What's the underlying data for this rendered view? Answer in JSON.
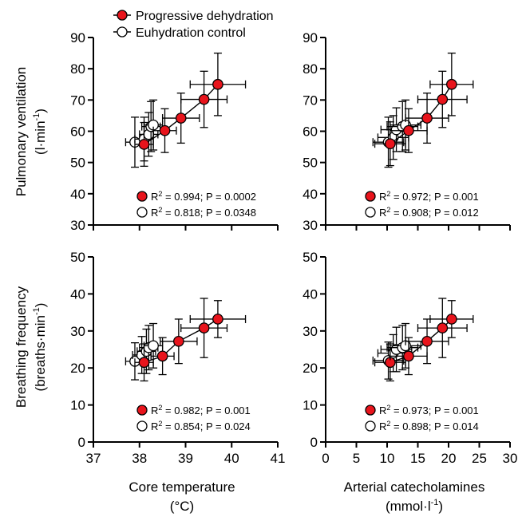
{
  "legend": {
    "entries": [
      {
        "label": "Progressive dehydration",
        "fill": "#e8141c"
      },
      {
        "label": "Euhydration control",
        "fill": "#ffffff"
      }
    ]
  },
  "row_labels": [
    {
      "line1": "Pulmonary ventilation",
      "line2": "(l·min",
      "sup": "-1",
      "tail": ")"
    },
    {
      "line1": "Breathing frequency",
      "line2": "(breaths·min",
      "sup": "-1",
      "tail": ")"
    }
  ],
  "col_labels": [
    {
      "line1": "Core temperature",
      "line2": "(°C)"
    },
    {
      "line1": "Arterial catecholamines",
      "line2": "(mmol·l",
      "sup": "-1",
      "tail": ")"
    }
  ],
  "chart_data": [
    {
      "type": "scatter",
      "panel": "top-left",
      "xlim": [
        37,
        41
      ],
      "xticks": [
        37,
        38,
        39,
        40,
        41
      ],
      "xticks_shown": false,
      "ylim": [
        30,
        90
      ],
      "yticks": [
        30,
        40,
        50,
        60,
        70,
        80,
        90
      ],
      "series": [
        {
          "name": "Progressive dehydration",
          "fill": "#e8141c",
          "line": true,
          "points": [
            {
              "x": 38.1,
              "y": 55.8,
              "xerr": 0.2,
              "yerr": 7
            },
            {
              "x": 38.55,
              "y": 60.2,
              "xerr": 0.25,
              "yerr": 7
            },
            {
              "x": 38.9,
              "y": 64.2,
              "xerr": 0.4,
              "yerr": 8
            },
            {
              "x": 39.4,
              "y": 70.2,
              "xerr": 0.5,
              "yerr": 9
            },
            {
              "x": 39.7,
              "y": 75.0,
              "xerr": 0.6,
              "yerr": 10
            }
          ]
        },
        {
          "name": "Euhydration control",
          "fill": "#ffffff",
          "line": true,
          "points": [
            {
              "x": 37.9,
              "y": 56.5,
              "xerr": 0.2,
              "yerr": 8
            },
            {
              "x": 38.1,
              "y": 57.5,
              "xerr": 0.2,
              "yerr": 7
            },
            {
              "x": 38.2,
              "y": 59.0,
              "xerr": 0.2,
              "yerr": 7
            },
            {
              "x": 38.25,
              "y": 61.5,
              "xerr": 0.2,
              "yerr": 8
            },
            {
              "x": 38.3,
              "y": 62.0,
              "xerr": 0.2,
              "yerr": 8
            }
          ]
        }
      ],
      "stats": [
        {
          "pre": "R",
          "sup": "2",
          "post": " = 0.994; P = 0.0002",
          "fill": "#e8141c"
        },
        {
          "pre": "R",
          "sup": "2",
          "post": " = 0.818; P = 0.0348",
          "fill": "#ffffff"
        }
      ]
    },
    {
      "type": "scatter",
      "panel": "top-right",
      "xlim": [
        0,
        30
      ],
      "xticks": [
        0,
        5,
        10,
        15,
        20,
        25,
        30
      ],
      "xticks_shown": false,
      "ylim": [
        30,
        90
      ],
      "yticks": [
        30,
        40,
        50,
        60,
        70,
        80,
        90
      ],
      "series": [
        {
          "name": "Progressive dehydration",
          "fill": "#e8141c",
          "line": true,
          "points": [
            {
              "x": 10.5,
              "y": 56.0,
              "xerr": 2.5,
              "yerr": 7
            },
            {
              "x": 13.5,
              "y": 60.2,
              "xerr": 3,
              "yerr": 7
            },
            {
              "x": 16.5,
              "y": 64.2,
              "xerr": 3.5,
              "yerr": 8
            },
            {
              "x": 19.0,
              "y": 70.2,
              "xerr": 4,
              "yerr": 9
            },
            {
              "x": 20.5,
              "y": 75.0,
              "xerr": 3.5,
              "yerr": 10
            }
          ]
        },
        {
          "name": "Euhydration control",
          "fill": "#ffffff",
          "line": true,
          "points": [
            {
              "x": 10.2,
              "y": 56.5,
              "xerr": 2.5,
              "yerr": 8
            },
            {
              "x": 11.0,
              "y": 58.0,
              "xerr": 2.5,
              "yerr": 7
            },
            {
              "x": 11.5,
              "y": 60.5,
              "xerr": 2.5,
              "yerr": 7
            },
            {
              "x": 12.5,
              "y": 61.5,
              "xerr": 2.5,
              "yerr": 8
            },
            {
              "x": 13.0,
              "y": 62.0,
              "xerr": 2.5,
              "yerr": 8
            }
          ]
        }
      ],
      "stats": [
        {
          "pre": "R",
          "sup": "2",
          "post": " = 0.972; P = 0.001",
          "fill": "#e8141c"
        },
        {
          "pre": "R",
          "sup": "2",
          "post": " = 0.908; P = 0.012",
          "fill": "#ffffff"
        }
      ]
    },
    {
      "type": "scatter",
      "panel": "bottom-left",
      "xlim": [
        37,
        41
      ],
      "xticks": [
        37,
        38,
        39,
        40,
        41
      ],
      "xticks_shown": true,
      "ylim": [
        0,
        50
      ],
      "yticks": [
        0,
        10,
        20,
        30,
        40,
        50
      ],
      "series": [
        {
          "name": "Progressive dehydration",
          "fill": "#e8141c",
          "line": true,
          "points": [
            {
              "x": 38.1,
              "y": 21.5,
              "xerr": 0.2,
              "yerr": 5
            },
            {
              "x": 38.5,
              "y": 23.2,
              "xerr": 0.25,
              "yerr": 5
            },
            {
              "x": 38.85,
              "y": 27.2,
              "xerr": 0.4,
              "yerr": 6
            },
            {
              "x": 39.4,
              "y": 30.8,
              "xerr": 0.5,
              "yerr": 8
            },
            {
              "x": 39.7,
              "y": 33.2,
              "xerr": 0.6,
              "yerr": 5
            }
          ]
        },
        {
          "name": "Euhydration control",
          "fill": "#ffffff",
          "line": true,
          "points": [
            {
              "x": 37.9,
              "y": 21.8,
              "xerr": 0.2,
              "yerr": 5
            },
            {
              "x": 38.05,
              "y": 23.5,
              "xerr": 0.2,
              "yerr": 5
            },
            {
              "x": 38.15,
              "y": 24.5,
              "xerr": 0.2,
              "yerr": 6
            },
            {
              "x": 38.2,
              "y": 25.5,
              "xerr": 0.2,
              "yerr": 6
            },
            {
              "x": 38.3,
              "y": 26.0,
              "xerr": 0.2,
              "yerr": 6
            }
          ]
        }
      ],
      "stats": [
        {
          "pre": "R",
          "sup": "2",
          "post": " = 0.982; P = 0.001",
          "fill": "#e8141c"
        },
        {
          "pre": "R",
          "sup": "2",
          "post": " = 0.854; P = 0.024",
          "fill": "#ffffff"
        }
      ]
    },
    {
      "type": "scatter",
      "panel": "bottom-right",
      "xlim": [
        0,
        30
      ],
      "xticks": [
        0,
        5,
        10,
        15,
        20,
        25,
        30
      ],
      "xticks_shown": true,
      "ylim": [
        0,
        50
      ],
      "yticks": [
        0,
        10,
        20,
        30,
        40,
        50
      ],
      "series": [
        {
          "name": "Progressive dehydration",
          "fill": "#e8141c",
          "line": true,
          "points": [
            {
              "x": 10.5,
              "y": 21.5,
              "xerr": 2.5,
              "yerr": 5
            },
            {
              "x": 13.5,
              "y": 23.2,
              "xerr": 3,
              "yerr": 5
            },
            {
              "x": 16.5,
              "y": 27.2,
              "xerr": 3.5,
              "yerr": 6
            },
            {
              "x": 19.0,
              "y": 30.8,
              "xerr": 4,
              "yerr": 8
            },
            {
              "x": 20.5,
              "y": 33.2,
              "xerr": 3.5,
              "yerr": 5
            }
          ]
        },
        {
          "name": "Euhydration control",
          "fill": "#ffffff",
          "line": true,
          "points": [
            {
              "x": 10.2,
              "y": 22.0,
              "xerr": 2.5,
              "yerr": 5
            },
            {
              "x": 11.0,
              "y": 24.0,
              "xerr": 2.5,
              "yerr": 5
            },
            {
              "x": 11.5,
              "y": 25.0,
              "xerr": 2.5,
              "yerr": 6
            },
            {
              "x": 12.5,
              "y": 25.5,
              "xerr": 2.5,
              "yerr": 6
            },
            {
              "x": 13.0,
              "y": 26.0,
              "xerr": 2.5,
              "yerr": 6
            }
          ]
        }
      ],
      "stats": [
        {
          "pre": "R",
          "sup": "2",
          "post": " = 0.973; P = 0.001",
          "fill": "#e8141c"
        },
        {
          "pre": "R",
          "sup": "2",
          "post": " = 0.898; P = 0.014",
          "fill": "#ffffff"
        }
      ]
    }
  ]
}
